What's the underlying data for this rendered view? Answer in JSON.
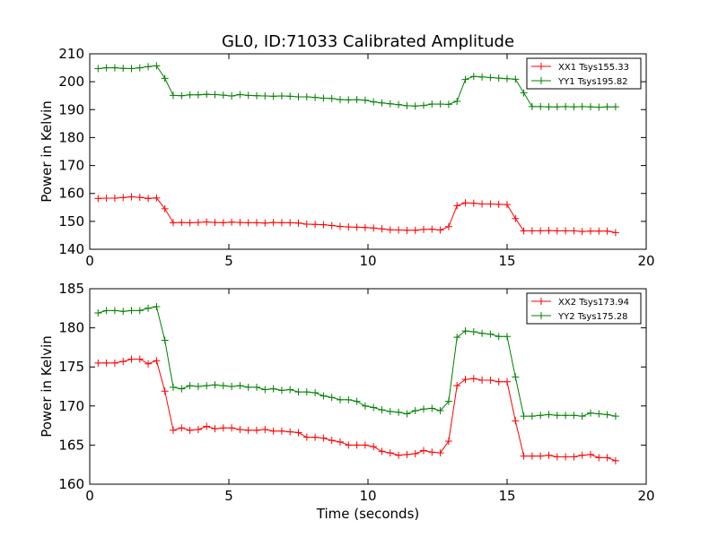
{
  "figure": {
    "title": "GL0, ID:71033 Calibrated Amplitude"
  },
  "chart_data": [
    {
      "type": "line",
      "title": "GL0, ID:71033 Calibrated Amplitude",
      "xlabel": "",
      "ylabel": "Power in Kelvin",
      "xlim": [
        0,
        20
      ],
      "ylim": [
        140,
        210
      ],
      "x_ticks": [
        "0",
        "5",
        "10",
        "15",
        "20"
      ],
      "y_ticks": [
        "140",
        "150",
        "160",
        "170",
        "180",
        "190",
        "200",
        "210"
      ],
      "grid": false,
      "legend_position": "top-right",
      "marker": "+",
      "x": [
        0.3,
        0.6,
        0.9,
        1.2,
        1.5,
        1.8,
        2.1,
        2.4,
        2.7,
        3.0,
        3.3,
        3.6,
        3.9,
        4.2,
        4.5,
        4.8,
        5.1,
        5.4,
        5.7,
        6.0,
        6.3,
        6.6,
        6.9,
        7.2,
        7.5,
        7.8,
        8.1,
        8.4,
        8.7,
        9.0,
        9.3,
        9.6,
        9.9,
        10.2,
        10.5,
        10.8,
        11.1,
        11.4,
        11.7,
        12.0,
        12.3,
        12.6,
        12.9,
        13.2,
        13.5,
        13.8,
        14.1,
        14.4,
        14.7,
        15.0,
        15.3,
        15.6,
        15.9,
        16.2,
        16.5,
        16.8,
        17.1,
        17.4,
        17.7,
        18.0,
        18.3,
        18.6,
        18.9
      ],
      "series": [
        {
          "name": "XX1 Tsys155.33",
          "color": "#ff0000",
          "values": [
            158.2,
            158.3,
            158.3,
            158.5,
            158.8,
            158.6,
            158.2,
            158.4,
            154.5,
            149.5,
            149.6,
            149.5,
            149.6,
            149.8,
            149.6,
            149.5,
            149.7,
            149.6,
            149.5,
            149.5,
            149.4,
            149.6,
            149.5,
            149.5,
            149.4,
            149.0,
            148.9,
            148.8,
            148.5,
            148.2,
            148.0,
            147.9,
            147.8,
            147.6,
            147.3,
            147.0,
            146.9,
            146.8,
            146.8,
            147.1,
            147.2,
            146.9,
            148.1,
            155.6,
            156.6,
            156.5,
            156.2,
            156.2,
            156.1,
            156.0,
            151.0,
            146.6,
            146.6,
            146.6,
            146.7,
            146.6,
            146.6,
            146.6,
            146.4,
            146.5,
            146.5,
            146.5,
            146.0
          ]
        },
        {
          "name": "YY1 Tsys195.82",
          "color": "#008000",
          "values": [
            204.7,
            205.0,
            205.0,
            204.8,
            204.7,
            205.0,
            205.4,
            205.7,
            201.2,
            195.1,
            195.0,
            195.3,
            195.3,
            195.5,
            195.4,
            195.2,
            194.9,
            195.4,
            195.1,
            195.0,
            194.9,
            194.8,
            194.9,
            194.8,
            194.6,
            194.6,
            194.4,
            194.1,
            194.0,
            193.6,
            193.5,
            193.6,
            193.4,
            192.8,
            192.4,
            192.1,
            191.8,
            191.4,
            191.3,
            191.5,
            192.0,
            192.0,
            191.9,
            193.0,
            200.8,
            201.9,
            201.7,
            201.5,
            201.3,
            201.1,
            200.9,
            196.0,
            191.1,
            191.1,
            191.0,
            191.0,
            191.1,
            191.0,
            191.1,
            191.0,
            190.9,
            191.0,
            191.0
          ]
        }
      ]
    },
    {
      "type": "line",
      "title": "",
      "xlabel": "Time (seconds)",
      "ylabel": "Power in Kelvin",
      "xlim": [
        0,
        20
      ],
      "ylim": [
        160,
        185
      ],
      "x_ticks": [
        "0",
        "5",
        "10",
        "15",
        "20"
      ],
      "y_ticks": [
        "160",
        "165",
        "170",
        "175",
        "180",
        "185"
      ],
      "grid": false,
      "legend_position": "top-right",
      "marker": "+",
      "x": [
        0.3,
        0.6,
        0.9,
        1.2,
        1.5,
        1.8,
        2.1,
        2.4,
        2.7,
        3.0,
        3.3,
        3.6,
        3.9,
        4.2,
        4.5,
        4.8,
        5.1,
        5.4,
        5.7,
        6.0,
        6.3,
        6.6,
        6.9,
        7.2,
        7.5,
        7.8,
        8.1,
        8.4,
        8.7,
        9.0,
        9.3,
        9.6,
        9.9,
        10.2,
        10.5,
        10.8,
        11.1,
        11.4,
        11.7,
        12.0,
        12.3,
        12.6,
        12.9,
        13.2,
        13.5,
        13.8,
        14.1,
        14.4,
        14.7,
        15.0,
        15.3,
        15.6,
        15.9,
        16.2,
        16.5,
        16.8,
        17.1,
        17.4,
        17.7,
        18.0,
        18.3,
        18.6,
        18.9
      ],
      "series": [
        {
          "name": "XX2 Tsys173.94",
          "color": "#ff0000",
          "values": [
            175.5,
            175.5,
            175.5,
            175.7,
            176.0,
            176.0,
            175.4,
            175.8,
            171.9,
            166.9,
            167.2,
            166.9,
            167.0,
            167.4,
            167.1,
            167.2,
            167.2,
            167.0,
            166.9,
            166.9,
            167.0,
            166.8,
            166.8,
            166.7,
            166.6,
            166.0,
            166.0,
            165.9,
            165.6,
            165.4,
            165.0,
            165.0,
            165.0,
            164.8,
            164.2,
            164.0,
            163.7,
            163.8,
            163.9,
            164.3,
            164.1,
            164.0,
            165.5,
            172.6,
            173.4,
            173.5,
            173.3,
            173.3,
            173.1,
            173.1,
            168.1,
            163.6,
            163.6,
            163.6,
            163.7,
            163.5,
            163.5,
            163.5,
            163.7,
            163.8,
            163.4,
            163.4,
            163.0
          ]
        },
        {
          "name": "YY2 Tsys175.28",
          "color": "#008000",
          "values": [
            181.9,
            182.2,
            182.2,
            182.1,
            182.2,
            182.2,
            182.5,
            182.7,
            178.4,
            172.4,
            172.2,
            172.6,
            172.5,
            172.6,
            172.7,
            172.6,
            172.5,
            172.6,
            172.4,
            172.4,
            172.1,
            172.2,
            172.0,
            172.1,
            171.8,
            171.8,
            171.7,
            171.3,
            171.1,
            170.8,
            170.8,
            170.6,
            170.0,
            169.8,
            169.5,
            169.3,
            169.2,
            169.0,
            169.4,
            169.6,
            169.7,
            169.4,
            170.6,
            178.8,
            179.6,
            179.5,
            179.3,
            179.2,
            178.9,
            178.9,
            173.7,
            168.7,
            168.7,
            168.8,
            168.9,
            168.8,
            168.8,
            168.8,
            168.7,
            169.1,
            169.0,
            168.9,
            168.7
          ]
        }
      ]
    }
  ]
}
